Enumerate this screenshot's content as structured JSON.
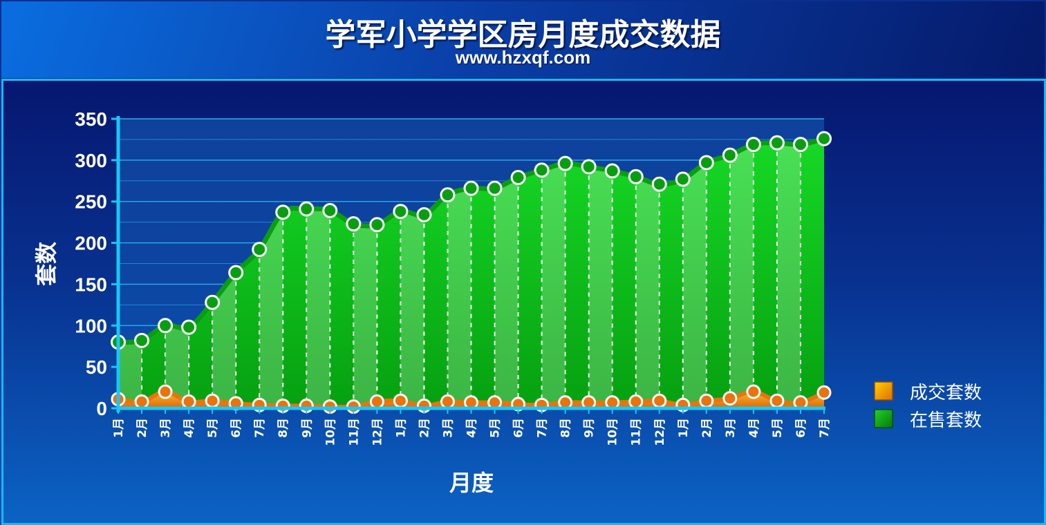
{
  "header": {
    "title": "学军小学学区房月度成交数据",
    "subtitle": "www.hzxqf.com"
  },
  "colors": {
    "deal": "#e8730f",
    "listing": "#0a9d12",
    "grid": "#2bb6ee",
    "axis": "#19c7f5"
  },
  "chart_data": {
    "type": "area",
    "xlabel": "月度",
    "ylabel": "套数",
    "ylim": [
      0,
      350
    ],
    "yticks": [
      0,
      50,
      100,
      150,
      200,
      250,
      300,
      350
    ],
    "grid": true,
    "legend_position": "right",
    "categories": [
      "1月",
      "2月",
      "3月",
      "4月",
      "5月",
      "6月",
      "7月",
      "8月",
      "9月",
      "10月",
      "11月",
      "12月",
      "1月",
      "2月",
      "3月",
      "4月",
      "5月",
      "6月",
      "7月",
      "8月",
      "9月",
      "10月",
      "11月",
      "12月",
      "1月",
      "2月",
      "3月",
      "4月",
      "5月",
      "6月",
      "7月"
    ],
    "series": [
      {
        "name": "成交套数",
        "color": "#e8730f",
        "values": [
          11,
          8,
          20,
          8,
          9,
          6,
          4,
          3,
          3,
          2,
          2,
          8,
          9,
          3,
          8,
          7,
          7,
          5,
          4,
          7,
          7,
          7,
          8,
          9,
          4,
          9,
          12,
          20,
          9,
          7,
          19
        ]
      },
      {
        "name": "在售套数",
        "color": "#0a9d12",
        "values": [
          80,
          82,
          100,
          98,
          128,
          164,
          192,
          237,
          241,
          239,
          223,
          222,
          238,
          234,
          258,
          266,
          266,
          279,
          288,
          296,
          292,
          287,
          280,
          271,
          277,
          297,
          306,
          319,
          321,
          319,
          326
        ]
      }
    ]
  }
}
